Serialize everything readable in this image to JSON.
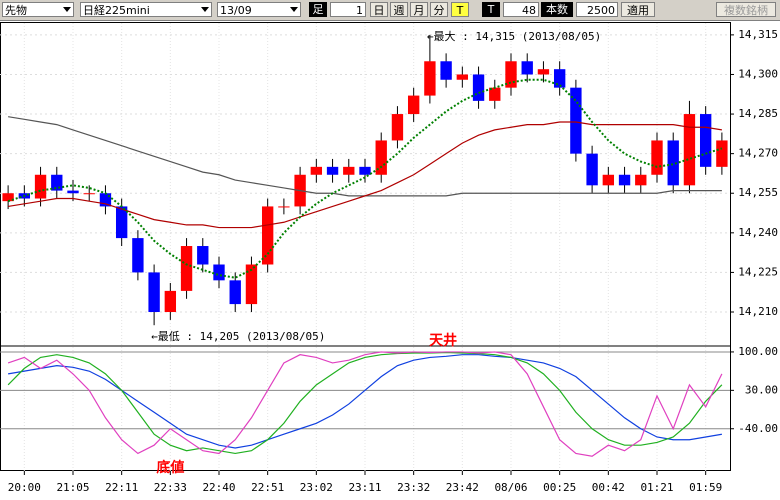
{
  "toolbar": {
    "market": "先物",
    "symbol": "日経225mini",
    "month": "13/09",
    "bar_label": "足",
    "bar_value": 1,
    "periods": [
      "日",
      "週",
      "月",
      "分"
    ],
    "t_active": "T",
    "t2": "T",
    "count1": 48,
    "count_label": "本数",
    "count2": 2500,
    "apply": "適用",
    "multi": "複数銘柄"
  },
  "chart_data": [
    {
      "type": "candlestick",
      "up_color": "#ff0000",
      "down_color": "#0000ff",
      "categories": [
        null,
        "20:00",
        null,
        null,
        "21:05",
        null,
        null,
        "22:11",
        null,
        null,
        "22:33",
        null,
        null,
        "22:40",
        null,
        null,
        "22:51",
        null,
        null,
        "23:02",
        null,
        null,
        "23:11",
        null,
        null,
        "23:32",
        null,
        null,
        "23:42",
        null,
        null,
        "08/06",
        null,
        null,
        "00:25",
        null,
        null,
        "00:42",
        null,
        null,
        "01:21",
        null,
        null,
        "01:59",
        null
      ],
      "open": [
        14252,
        14255,
        14253,
        14262,
        14256,
        14255,
        14255,
        14250,
        14238,
        14225,
        14210,
        14218,
        14235,
        14228,
        14222,
        14213,
        14228,
        14250,
        14250,
        14262,
        14265,
        14262,
        14265,
        14262,
        14275,
        14285,
        14292,
        14305,
        14298,
        14300,
        14290,
        14295,
        14305,
        14300,
        14302,
        14295,
        14270,
        14258,
        14262,
        14258,
        14262,
        14275,
        14258,
        14285,
        14265
      ],
      "high": [
        14258,
        14258,
        14265,
        14265,
        14260,
        14258,
        14258,
        14253,
        14241,
        14228,
        14221,
        14238,
        14238,
        14231,
        14225,
        14231,
        14253,
        14253,
        14265,
        14268,
        14268,
        14268,
        14268,
        14278,
        14288,
        14295,
        14315,
        14308,
        14303,
        14303,
        14298,
        14308,
        14308,
        14305,
        14305,
        14298,
        14273,
        14265,
        14265,
        14265,
        14278,
        14278,
        14290,
        14288,
        14278
      ],
      "low": [
        14249,
        14250,
        14250,
        14253,
        14252,
        14252,
        14247,
        14235,
        14222,
        14205,
        14207,
        14215,
        14225,
        14219,
        14210,
        14210,
        14225,
        14247,
        14247,
        14259,
        14259,
        14259,
        14259,
        14259,
        14272,
        14282,
        14289,
        14295,
        14295,
        14287,
        14287,
        14292,
        14297,
        14297,
        14292,
        14267,
        14255,
        14255,
        14255,
        14255,
        14259,
        14255,
        14255,
        14262,
        14262
      ],
      "close": [
        14255,
        14253,
        14262,
        14256,
        14255,
        14255,
        14250,
        14238,
        14225,
        14210,
        14218,
        14235,
        14228,
        14222,
        14213,
        14228,
        14250,
        14250,
        14262,
        14265,
        14262,
        14265,
        14262,
        14275,
        14285,
        14292,
        14305,
        14298,
        14300,
        14290,
        14295,
        14305,
        14300,
        14302,
        14295,
        14270,
        14258,
        14262,
        14258,
        14262,
        14275,
        14258,
        14285,
        14265,
        14275
      ],
      "series": [
        {
          "color": "#555555",
          "dashed": false,
          "values": [
            14284,
            14283,
            14282,
            14281,
            14279,
            14277,
            14275,
            14273,
            14271,
            14269,
            14267,
            14265,
            14263,
            14262,
            14260,
            14259,
            14258,
            14257,
            14256,
            14255,
            14255,
            14254,
            14254,
            14254,
            14254,
            14254,
            14254,
            14254,
            14255,
            14255,
            14255,
            14255,
            14255,
            14255,
            14255,
            14255,
            14255,
            14255,
            14255,
            14255,
            14255,
            14256,
            14256,
            14256,
            14256
          ]
        },
        {
          "color": "#b00000",
          "dashed": false,
          "values": [
            14250,
            14251,
            14252,
            14253,
            14253,
            14252,
            14251,
            14249,
            14247,
            14245,
            14244,
            14243,
            14243,
            14242,
            14242,
            14242,
            14243,
            14244,
            14246,
            14248,
            14250,
            14252,
            14254,
            14256,
            14259,
            14262,
            14266,
            14270,
            14274,
            14277,
            14279,
            14280,
            14281,
            14281,
            14282,
            14282,
            14281,
            14281,
            14281,
            14281,
            14281,
            14281,
            14280,
            14280,
            14279
          ]
        },
        {
          "color": "#008000",
          "dashed": true,
          "values": [
            14252,
            14254,
            14256,
            14257,
            14258,
            14257,
            14255,
            14250,
            14244,
            14237,
            14232,
            14228,
            14226,
            14224,
            14223,
            14226,
            14232,
            14240,
            14246,
            14251,
            14255,
            14258,
            14261,
            14265,
            14270,
            14276,
            14281,
            14286,
            14290,
            14293,
            14295,
            14297,
            14298,
            14298,
            14296,
            14290,
            14282,
            14275,
            14270,
            14267,
            14265,
            14266,
            14268,
            14270,
            14272
          ]
        }
      ],
      "ylim": [
        14197.5,
        14319.5
      ],
      "yticks": [
        {
          "value": 14210,
          "label": "14,210"
        },
        {
          "value": 14225,
          "label": "14,225"
        },
        {
          "value": 14240,
          "label": "14,240"
        },
        {
          "value": 14255,
          "label": "14,255"
        },
        {
          "value": 14270,
          "label": "14,270"
        },
        {
          "value": 14285,
          "label": "14,285"
        },
        {
          "value": 14300,
          "label": "14,300"
        },
        {
          "value": 14315,
          "label": "14,315"
        }
      ],
      "annotations": [
        "←最大 : 14,315 (2013/08/05)",
        "←最低 : 14,205 (2013/08/05)"
      ]
    },
    {
      "type": "line",
      "series": [
        {
          "color": "#1040e0",
          "values": [
            60,
            65,
            70,
            75,
            72,
            65,
            50,
            30,
            10,
            -10,
            -30,
            -50,
            -60,
            -70,
            -75,
            -70,
            -60,
            -50,
            -40,
            -30,
            -15,
            5,
            30,
            55,
            75,
            85,
            90,
            92,
            95,
            95,
            92,
            90,
            85,
            80,
            70,
            55,
            30,
            5,
            -20,
            -40,
            -55,
            -60,
            -60,
            -55,
            -50
          ]
        },
        {
          "color": "#20b020",
          "values": [
            40,
            70,
            90,
            95,
            90,
            80,
            60,
            30,
            -10,
            -50,
            -70,
            -80,
            -75,
            -80,
            -85,
            -80,
            -60,
            -30,
            10,
            40,
            60,
            80,
            90,
            95,
            97,
            98,
            98,
            99,
            98,
            97,
            95,
            90,
            80,
            60,
            30,
            -10,
            -40,
            -60,
            -70,
            -70,
            -65,
            -55,
            -30,
            10,
            40
          ]
        },
        {
          "color": "#e040c0",
          "values": [
            80,
            90,
            70,
            85,
            60,
            30,
            -20,
            -60,
            -85,
            -70,
            -40,
            -60,
            -80,
            -85,
            -60,
            -20,
            30,
            80,
            95,
            90,
            80,
            85,
            95,
            100,
            98,
            100,
            99,
            100,
            100,
            98,
            100,
            95,
            60,
            0,
            -60,
            -85,
            -90,
            -70,
            -80,
            -60,
            20,
            -40,
            40,
            0,
            60
          ]
        }
      ],
      "ylim": [
        -117,
        109
      ],
      "yticks": [
        {
          "value": 100,
          "label": "100.00"
        },
        {
          "value": 30,
          "label": "30.00"
        },
        {
          "value": -40,
          "label": "-40.00"
        }
      ],
      "annotations": [
        "天井",
        "底値"
      ]
    }
  ]
}
